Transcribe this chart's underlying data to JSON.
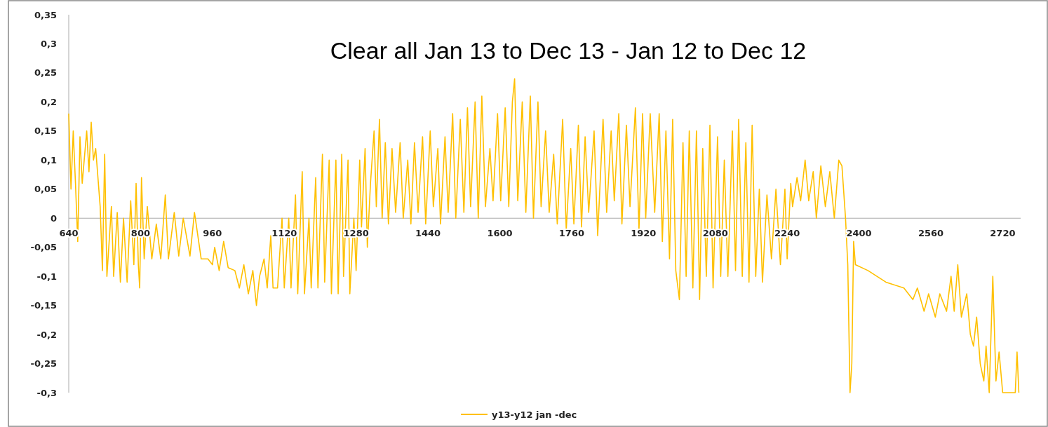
{
  "chart_data": {
    "type": "line",
    "title": "Clear all Jan 13 to Dec 13 - Jan 12 to Dec 12",
    "legend": "bottom",
    "grid": false,
    "line_style": "solid",
    "xlim": [
      640,
      2760
    ],
    "xticks": [
      640,
      800,
      960,
      1120,
      1280,
      1440,
      1600,
      1760,
      1920,
      2080,
      2240,
      2400,
      2560,
      2720
    ],
    "ylim": [
      -0.3,
      0.35
    ],
    "yticks": [
      {
        "value": 0.35,
        "label": "0,35"
      },
      {
        "value": 0.3,
        "label": "0,3"
      },
      {
        "value": 0.25,
        "label": "0,25"
      },
      {
        "value": 0.2,
        "label": "0,2"
      },
      {
        "value": 0.15,
        "label": "0,15"
      },
      {
        "value": 0.1,
        "label": "0,1"
      },
      {
        "value": 0.05,
        "label": "0,05"
      },
      {
        "value": 0,
        "label": "0"
      },
      {
        "value": -0.05,
        "label": "-0,05"
      },
      {
        "value": -0.1,
        "label": "-0,1"
      },
      {
        "value": -0.15,
        "label": "-0,15"
      },
      {
        "value": -0.2,
        "label": "-0,2"
      },
      {
        "value": -0.25,
        "label": "-0,25"
      },
      {
        "value": -0.3,
        "label": "-0,3"
      }
    ],
    "x": [
      640,
      645,
      650,
      655,
      660,
      665,
      670,
      680,
      685,
      690,
      695,
      700,
      710,
      715,
      720,
      725,
      735,
      740,
      748,
      755,
      762,
      770,
      778,
      785,
      790,
      795,
      798,
      802,
      808,
      815,
      825,
      835,
      845,
      855,
      862,
      875,
      885,
      895,
      910,
      920,
      935,
      950,
      960,
      965,
      975,
      985,
      995,
      1010,
      1020,
      1030,
      1040,
      1050,
      1058,
      1065,
      1075,
      1082,
      1090,
      1095,
      1105,
      1115,
      1120,
      1130,
      1135,
      1145,
      1150,
      1160,
      1165,
      1175,
      1180,
      1190,
      1195,
      1205,
      1210,
      1220,
      1225,
      1235,
      1240,
      1248,
      1252,
      1262,
      1266,
      1275,
      1280,
      1288,
      1292,
      1300,
      1305,
      1312,
      1320,
      1325,
      1332,
      1338,
      1345,
      1352,
      1360,
      1368,
      1378,
      1385,
      1395,
      1402,
      1410,
      1418,
      1428,
      1435,
      1445,
      1452,
      1462,
      1468,
      1478,
      1485,
      1495,
      1502,
      1512,
      1520,
      1528,
      1535,
      1545,
      1552,
      1560,
      1568,
      1578,
      1585,
      1595,
      1602,
      1612,
      1620,
      1628,
      1633,
      1640,
      1650,
      1658,
      1668,
      1675,
      1685,
      1692,
      1702,
      1710,
      1720,
      1728,
      1740,
      1748,
      1758,
      1765,
      1775,
      1782,
      1790,
      1798,
      1810,
      1818,
      1830,
      1838,
      1848,
      1855,
      1865,
      1872,
      1882,
      1890,
      1902,
      1910,
      1918,
      1925,
      1935,
      1945,
      1955,
      1962,
      1970,
      1978,
      1985,
      1992,
      2000,
      2008,
      2015,
      2022,
      2030,
      2038,
      2045,
      2052,
      2060,
      2068,
      2075,
      2085,
      2092,
      2100,
      2108,
      2118,
      2125,
      2132,
      2140,
      2148,
      2155,
      2162,
      2170,
      2178,
      2185,
      2195,
      2205,
      2215,
      2225,
      2235,
      2240,
      2248,
      2252,
      2262,
      2270,
      2280,
      2288,
      2298,
      2305,
      2315,
      2325,
      2335,
      2345,
      2355,
      2362,
      2370,
      2375,
      2380,
      2384,
      2388,
      2392,
      2420,
      2460,
      2500,
      2520,
      2530,
      2545,
      2555,
      2570,
      2580,
      2595,
      2605,
      2612,
      2620,
      2628,
      2640,
      2648,
      2655,
      2662,
      2670,
      2678,
      2683,
      2690,
      2698,
      2705,
      2712,
      2720,
      2735,
      2748,
      2752,
      2756
    ],
    "series": [
      {
        "name": "y13-y12 jan -dec",
        "color": "#ffc000",
        "values": [
          0.18,
          0.05,
          0.15,
          0.06,
          -0.04,
          0.14,
          0.06,
          0.15,
          0.08,
          0.165,
          0.1,
          0.12,
          0.02,
          -0.09,
          0.11,
          -0.1,
          0.02,
          -0.1,
          0.01,
          -0.11,
          0.0,
          -0.11,
          0.03,
          -0.08,
          0.06,
          -0.08,
          -0.12,
          0.07,
          -0.07,
          0.02,
          -0.07,
          -0.01,
          -0.07,
          0.04,
          -0.07,
          0.01,
          -0.065,
          0.0,
          -0.065,
          0.01,
          -0.07,
          -0.07,
          -0.08,
          -0.05,
          -0.09,
          -0.04,
          -0.085,
          -0.09,
          -0.12,
          -0.08,
          -0.13,
          -0.09,
          -0.15,
          -0.1,
          -0.07,
          -0.12,
          -0.03,
          -0.12,
          -0.12,
          0.0,
          -0.12,
          0.0,
          -0.12,
          0.04,
          -0.13,
          0.08,
          -0.13,
          0.0,
          -0.12,
          0.07,
          -0.12,
          0.11,
          -0.11,
          0.1,
          -0.13,
          0.1,
          -0.13,
          0.11,
          -0.1,
          0.1,
          -0.13,
          0.0,
          -0.09,
          0.1,
          -0.015,
          0.12,
          -0.05,
          0.06,
          0.15,
          0.02,
          0.17,
          0.0,
          0.13,
          -0.01,
          0.12,
          0.01,
          0.13,
          0.0,
          0.1,
          -0.01,
          0.13,
          0.01,
          0.14,
          -0.01,
          0.15,
          0.02,
          0.12,
          -0.01,
          0.14,
          0.01,
          0.18,
          0.0,
          0.17,
          0.01,
          0.19,
          0.02,
          0.2,
          0.0,
          0.21,
          0.02,
          0.12,
          0.03,
          0.18,
          0.03,
          0.19,
          0.02,
          0.2,
          0.24,
          0.03,
          0.2,
          0.01,
          0.21,
          0.0,
          0.2,
          0.02,
          0.15,
          0.01,
          0.11,
          -0.01,
          0.17,
          -0.02,
          0.12,
          -0.01,
          0.16,
          -0.015,
          0.14,
          0.01,
          0.15,
          -0.03,
          0.17,
          0.01,
          0.15,
          0.03,
          0.18,
          -0.01,
          0.16,
          0.02,
          0.19,
          -0.02,
          0.18,
          0.0,
          0.18,
          0.01,
          0.18,
          -0.04,
          0.15,
          -0.07,
          0.17,
          -0.09,
          -0.14,
          0.13,
          -0.1,
          0.15,
          -0.12,
          0.15,
          -0.14,
          0.12,
          -0.1,
          0.16,
          -0.12,
          0.14,
          -0.1,
          0.1,
          -0.1,
          0.15,
          -0.09,
          0.17,
          -0.1,
          0.13,
          -0.11,
          0.16,
          -0.1,
          0.05,
          -0.11,
          0.04,
          -0.07,
          0.05,
          -0.08,
          0.05,
          -0.07,
          0.06,
          0.02,
          0.07,
          0.03,
          0.1,
          0.03,
          0.08,
          0.0,
          0.09,
          0.02,
          0.08,
          0.0,
          0.1,
          0.09,
          0.0,
          -0.08,
          -0.3,
          -0.25,
          -0.04,
          -0.08,
          -0.09,
          -0.11,
          -0.12,
          -0.14,
          -0.12,
          -0.16,
          -0.13,
          -0.17,
          -0.13,
          -0.16,
          -0.1,
          -0.16,
          -0.08,
          -0.17,
          -0.13,
          -0.2,
          -0.22,
          -0.17,
          -0.25,
          -0.28,
          -0.22,
          -0.3,
          -0.1,
          -0.28,
          -0.23,
          -0.3,
          -0.3,
          -0.3,
          -0.23,
          -0.3
        ]
      }
    ]
  }
}
